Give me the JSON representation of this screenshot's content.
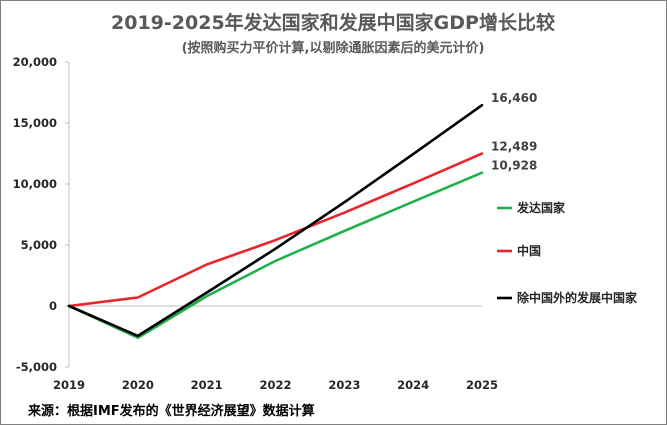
{
  "chart_data": {
    "type": "line",
    "title": "2019-2025年发达国家和发展中国家GDP增长比较",
    "subtitle": "(按照购买力平价计算,以剔除通胀因素后的美元计价)",
    "x": [
      "2019",
      "2020",
      "2021",
      "2022",
      "2023",
      "2024",
      "2025"
    ],
    "ylim": [
      -5000,
      20000
    ],
    "yticks": [
      -5000,
      0,
      5000,
      10000,
      15000,
      20000
    ],
    "ytick_labels": [
      "-5,000",
      "0",
      "5,000",
      "10,000",
      "15,000",
      "20,000"
    ],
    "series": [
      {
        "name": "发达国家",
        "color": "#21b14b",
        "values": [
          0,
          -2600,
          800,
          3700,
          6150,
          8550,
          10928
        ],
        "end_label": "10,928"
      },
      {
        "name": "中国",
        "color": "#e8262b",
        "values": [
          0,
          700,
          3400,
          5400,
          7650,
          10050,
          12489
        ],
        "end_label": "12,489"
      },
      {
        "name": "除中国外的发展中国家",
        "color": "#000000",
        "values": [
          0,
          -2450,
          1100,
          4700,
          8500,
          12450,
          16460
        ],
        "end_label": "16,460"
      }
    ],
    "legend_position": "right",
    "grid": false
  },
  "source_note": "来源：根据IMF发布的《世界经济展望》数据计算"
}
